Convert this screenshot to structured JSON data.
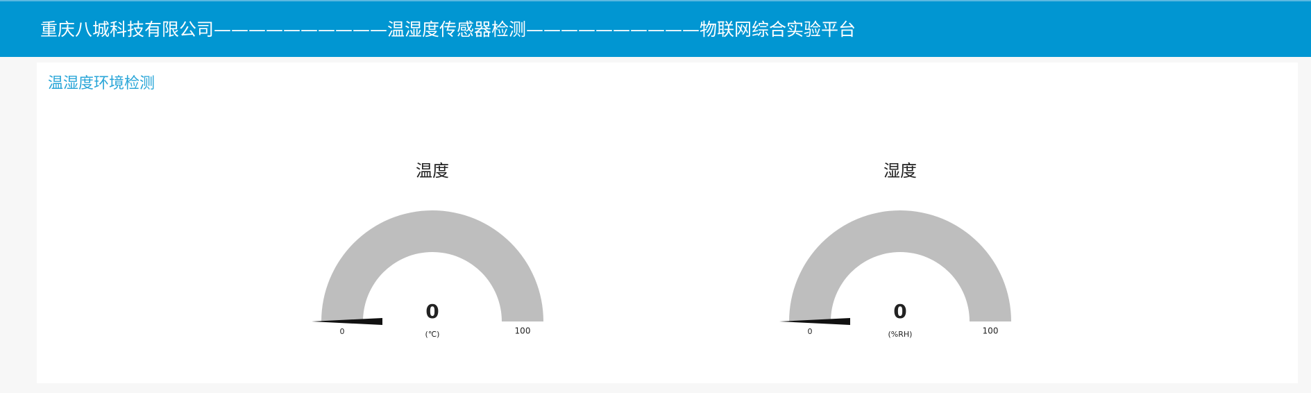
{
  "header": {
    "title": "重庆八城科技有限公司——————————温湿度传感器检测——————————物联网综合实验平台"
  },
  "panel": {
    "title": "温湿度环境检测",
    "gauges": [
      {
        "title": "温度",
        "value": 0,
        "unit": "(℃)",
        "min": 0,
        "max": 100,
        "color": "#bebebe"
      },
      {
        "title": "湿度",
        "value": 0,
        "unit": "(%RH)",
        "min": 0,
        "max": 100,
        "color": "#bebebe"
      }
    ]
  }
}
